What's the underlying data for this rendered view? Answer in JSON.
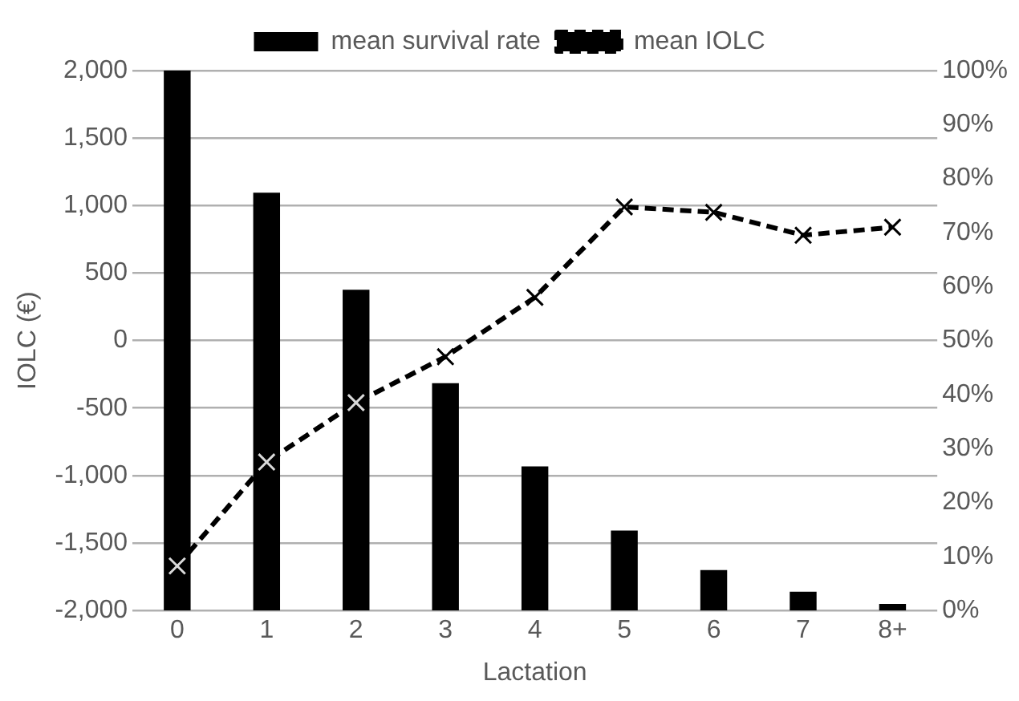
{
  "chart_data": {
    "type": "bar",
    "xlabel": "Lactation",
    "ylabel": "IOLC (€)",
    "categories": [
      "0",
      "1",
      "2",
      "3",
      "4",
      "5",
      "6",
      "7",
      "8+"
    ],
    "series": [
      {
        "name": "mean survival rate",
        "axis": "y2",
        "color": "#000000",
        "values": [
          100,
          77.4,
          59.4,
          42.1,
          26.7,
          14.8,
          7.5,
          3.5,
          1.2
        ]
      },
      {
        "name": "mean IOLC",
        "type": "line",
        "axis": "y",
        "color": "#000000",
        "line_style": "dashed",
        "marker": "cross",
        "values": [
          -1670,
          -900,
          -460,
          -120,
          320,
          990,
          950,
          780,
          840
        ]
      }
    ],
    "ylim": [
      -2000,
      2000
    ],
    "yticks": [
      {
        "value": -2000,
        "label": "-2,000"
      },
      {
        "value": -1500,
        "label": "-1,500"
      },
      {
        "value": -1000,
        "label": "-1,000"
      },
      {
        "value": -500,
        "label": "-500"
      },
      {
        "value": 0,
        "label": "0"
      },
      {
        "value": 500,
        "label": "500"
      },
      {
        "value": 1000,
        "label": "1,000"
      },
      {
        "value": 1500,
        "label": "1,500"
      },
      {
        "value": 2000,
        "label": "2,000"
      }
    ],
    "y2lim": [
      0,
      100
    ],
    "y2ticks": [
      {
        "value": 0,
        "label": "0%"
      },
      {
        "value": 10,
        "label": "10%"
      },
      {
        "value": 20,
        "label": "20%"
      },
      {
        "value": 30,
        "label": "30%"
      },
      {
        "value": 40,
        "label": "40%"
      },
      {
        "value": 50,
        "label": "50%"
      },
      {
        "value": 60,
        "label": "60%"
      },
      {
        "value": 70,
        "label": "70%"
      },
      {
        "value": 80,
        "label": "80%"
      },
      {
        "value": 90,
        "label": "90%"
      },
      {
        "value": 100,
        "label": "100%"
      }
    ],
    "grid": "y",
    "legend": "top"
  }
}
